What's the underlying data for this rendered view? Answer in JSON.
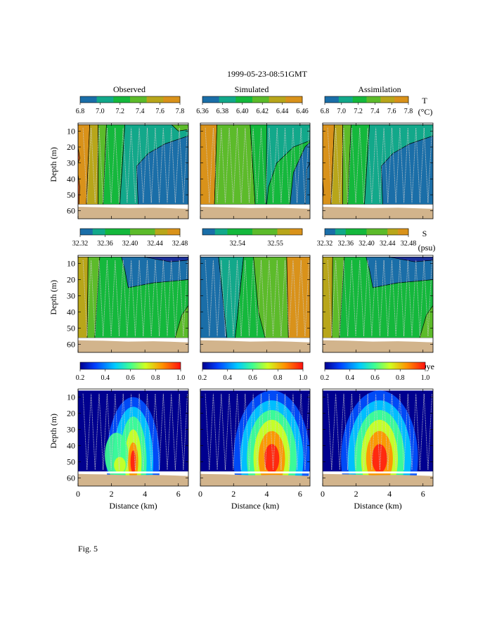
{
  "figure": {
    "title": "1999-05-23-08:51GMT",
    "caption": "Fig. 5"
  },
  "columns": [
    "Observed",
    "Simulated",
    "Assimilation"
  ],
  "variable_labels": {
    "temperature": [
      "T",
      "(°C)"
    ],
    "salinity": [
      "S",
      "(psu)"
    ],
    "dye": [
      "Dye"
    ]
  },
  "colors": {
    "discrete": [
      "#1a6ea8",
      "#12a88a",
      "#14b83c",
      "#5cbb2a",
      "#b8a61a",
      "#d9921a",
      "#e8601a"
    ],
    "seabed": "#d2b48c",
    "contour_line": "#000000",
    "track": "#d0d0d0"
  },
  "chart_data": {
    "type": "heatmap",
    "x": {
      "label": "Distance (km)",
      "lim": [
        0,
        6.6
      ],
      "ticks": [
        0,
        2,
        4,
        6
      ]
    },
    "y": {
      "label": "Depth (m)",
      "lim": [
        65,
        5
      ],
      "ticks": [
        10,
        20,
        30,
        40,
        50,
        60
      ]
    },
    "rows": [
      {
        "variable": "temperature",
        "colorbars": [
          {
            "ticks": [
              "6.8",
              "7.0",
              "7.2",
              "7.4",
              "7.6",
              "7.8"
            ],
            "range": [
              6.8,
              7.8
            ]
          },
          {
            "ticks": [
              "6.36",
              "6.38",
              "6.40",
              "6.42",
              "6.44",
              "6.46"
            ],
            "range": [
              6.36,
              6.46
            ]
          },
          {
            "ticks": [
              "6.8",
              "7.0",
              "7.2",
              "7.4",
              "7.6",
              "7.8"
            ],
            "range": [
              6.8,
              7.8
            ]
          }
        ]
      },
      {
        "variable": "salinity",
        "colorbars": [
          {
            "ticks": [
              "32.32",
              "32.36",
              "32.40",
              "32.44",
              "32.48"
            ],
            "range": [
              32.32,
              32.48
            ]
          },
          {
            "ticks": [
              "32.54",
              "32.55"
            ],
            "range": [
              32.53,
              32.56
            ]
          },
          {
            "ticks": [
              "32.32",
              "32.36",
              "32.40",
              "32.44",
              "32.48"
            ],
            "range": [
              32.32,
              32.48
            ]
          }
        ]
      },
      {
        "variable": "dye",
        "colorbars": [
          {
            "ticks": [
              "0.2",
              "0.4",
              "0.6",
              "0.8",
              "1.0"
            ],
            "range": [
              0.2,
              1.0
            ]
          },
          {
            "ticks": [
              "0.2",
              "0.4",
              "0.6",
              "0.8",
              "1.0"
            ],
            "range": [
              0.2,
              1.0
            ]
          },
          {
            "ticks": [
              "0.2",
              "0.4",
              "0.6",
              "0.8",
              "1.0"
            ],
            "range": [
              0.2,
              1.0
            ]
          }
        ]
      }
    ],
    "dye_plume_peaks": [
      {
        "panel": "Observed",
        "distance_km": 3.3,
        "depth_m": 50,
        "value": 1.0
      },
      {
        "panel": "Simulated",
        "distance_km": 4.3,
        "depth_m": 48,
        "value": 1.0
      },
      {
        "panel": "Assimilation",
        "distance_km": 3.4,
        "depth_m": 48,
        "value": 1.0
      }
    ]
  }
}
